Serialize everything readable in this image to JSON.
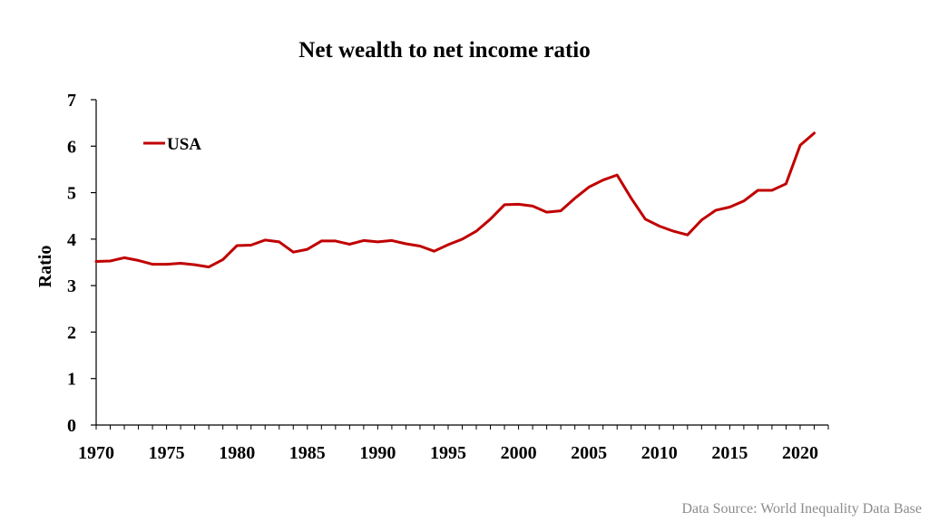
{
  "source_note": "Data Source: World Inequality Data Base",
  "colors": {
    "series": "#c00000",
    "axis": "#000000",
    "source_text": "#8c8c8c"
  },
  "chart_data": {
    "type": "line",
    "title": "Net wealth to net income ratio",
    "xlabel": "",
    "ylabel": "Ratio",
    "xlim": [
      1970,
      2022
    ],
    "ylim": [
      0,
      7
    ],
    "xticks": [
      1970,
      1975,
      1980,
      1985,
      1990,
      1995,
      2000,
      2005,
      2010,
      2015,
      2020
    ],
    "yticks": [
      0,
      1,
      2,
      3,
      4,
      5,
      6,
      7
    ],
    "grid": false,
    "legend_position": "top-left",
    "x": [
      1970,
      1971,
      1972,
      1973,
      1974,
      1975,
      1976,
      1977,
      1978,
      1979,
      1980,
      1981,
      1982,
      1983,
      1984,
      1985,
      1986,
      1987,
      1988,
      1989,
      1990,
      1991,
      1992,
      1993,
      1994,
      1995,
      1996,
      1997,
      1998,
      1999,
      2000,
      2001,
      2002,
      2003,
      2004,
      2005,
      2006,
      2007,
      2008,
      2009,
      2010,
      2011,
      2012,
      2013,
      2014,
      2015,
      2016,
      2017,
      2018,
      2019,
      2020,
      2021
    ],
    "series": [
      {
        "name": "USA",
        "color": "#c00000",
        "values": [
          3.52,
          3.53,
          3.6,
          3.54,
          3.46,
          3.46,
          3.48,
          3.45,
          3.4,
          3.56,
          3.86,
          3.87,
          3.98,
          3.94,
          3.72,
          3.78,
          3.96,
          3.96,
          3.89,
          3.97,
          3.94,
          3.97,
          3.9,
          3.85,
          3.74,
          3.88,
          4.0,
          4.17,
          4.43,
          4.74,
          4.75,
          4.71,
          4.58,
          4.61,
          4.88,
          5.12,
          5.27,
          5.38,
          4.88,
          4.43,
          4.28,
          4.17,
          4.09,
          4.41,
          4.62,
          4.69,
          4.82,
          5.05,
          5.05,
          5.19,
          6.02,
          6.28
        ]
      }
    ]
  }
}
